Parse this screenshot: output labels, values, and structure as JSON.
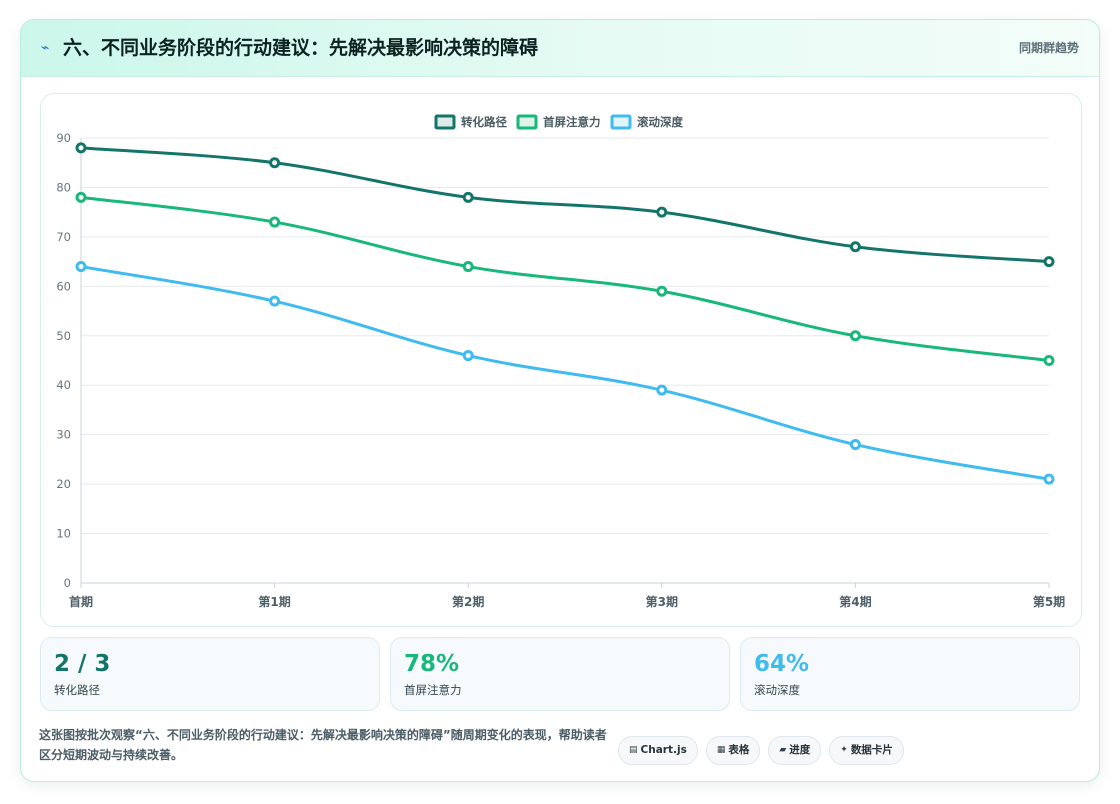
{
  "header": {
    "icon": "lightning-icon",
    "title": "六、不同业务阶段的行动建议：先解决最影响决策的障碍",
    "link_label": "同期群趋势"
  },
  "chart_data": {
    "type": "line",
    "x": [
      "首期",
      "第1期",
      "第2期",
      "第3期",
      "第4期",
      "第5期"
    ],
    "ylim": [
      0,
      90
    ],
    "yticks": [
      0,
      10,
      20,
      30,
      40,
      50,
      60,
      70,
      80,
      90
    ],
    "grid": true,
    "legend_position": "top-center",
    "series": [
      {
        "name": "转化路径",
        "color": "#13756a",
        "values": [
          88,
          85,
          78,
          75,
          68,
          65
        ]
      },
      {
        "name": "首屏注意力",
        "color": "#18b87a",
        "values": [
          78,
          73,
          64,
          59,
          50,
          45
        ]
      },
      {
        "name": "滚动深度",
        "color": "#3fbbef",
        "values": [
          64,
          57,
          46,
          39,
          28,
          21
        ]
      }
    ]
  },
  "stats": [
    {
      "value": "2 / 3",
      "label": "转化路径",
      "color": "#13756a"
    },
    {
      "value": "78%",
      "label": "首屏注意力",
      "color": "#18b87a"
    },
    {
      "value": "64%",
      "label": "滚动深度",
      "color": "#3fbbef"
    }
  ],
  "footer": {
    "description": "这张图按批次观察“六、不同业务阶段的行动建议：先解决最影响决策的障碍”随周期变化的表现，帮助读者区分短期波动与持续改善。",
    "badges": [
      {
        "icon": "chart-icon",
        "glyph": "▤",
        "label": "Chart.js"
      },
      {
        "icon": "table-icon",
        "glyph": "▦",
        "label": "表格"
      },
      {
        "icon": "progress-icon",
        "glyph": "▰",
        "label": "进度"
      },
      {
        "icon": "sparkle-icon",
        "glyph": "✦",
        "label": "数据卡片"
      }
    ]
  }
}
